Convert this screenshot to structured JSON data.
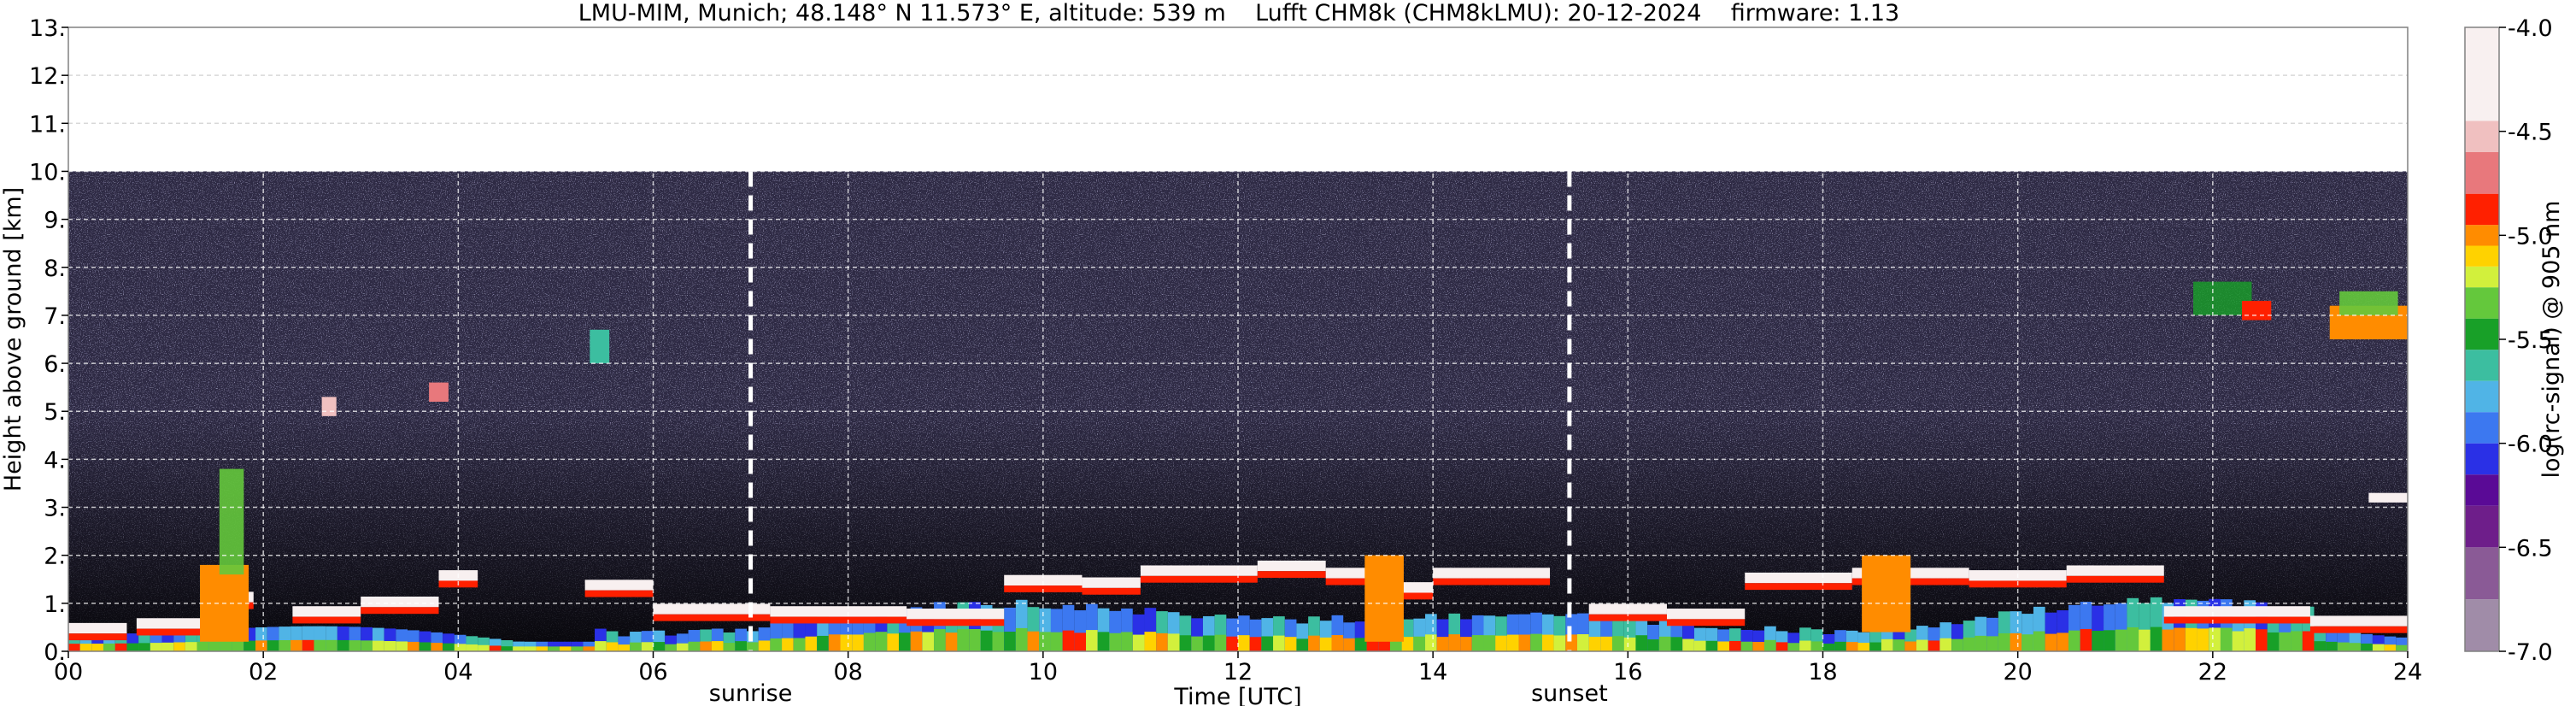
{
  "chart_data": {
    "type": "heatmap",
    "title": "LMU-MIM, Munich; 48.148° N 11.573° E, altitude: 539 m    Lufft CHM8k (CHM8kLMU): 20-12-2024    firmware: 1.13",
    "xlabel": "Time [UTC]",
    "ylabel": "Height above ground [km]",
    "colorbar_label": "log(rc-signal) @ 905 nm",
    "xlim": [
      0,
      24
    ],
    "ylim": [
      0,
      13
    ],
    "x_tick_labels": [
      "00",
      "02",
      "04",
      "06",
      "08",
      "10",
      "12",
      "14",
      "16",
      "18",
      "20",
      "22",
      "24"
    ],
    "y_ticks": [
      0,
      1,
      2,
      3,
      4,
      5,
      6,
      7,
      8,
      9,
      10,
      11,
      12,
      13
    ],
    "y_tick_labels": [
      "0.",
      "1.",
      "2.",
      "3.",
      "4.",
      "5.",
      "6.",
      "7.",
      "8.",
      "9.",
      "10.",
      "11.",
      "12.",
      "13."
    ],
    "colorbar_ticks": [
      -4.0,
      -4.5,
      -5.0,
      -5.5,
      -6.0,
      -6.5,
      -7.0
    ],
    "colorbar_tick_labels": [
      "-4.0",
      "-4.5",
      "-5.0",
      "-5.5",
      "-6.0",
      "-6.5",
      "-7.0"
    ],
    "colorbar_range": [
      -7.0,
      -4.0
    ],
    "grid": true,
    "data_top_km": 10.0,
    "background_color": "#2e2a44",
    "event_lines": [
      {
        "label": "sunrise",
        "time_h": 7.0
      },
      {
        "label": "sunset",
        "time_h": 15.4
      }
    ],
    "colormap": [
      {
        "value": -7.0,
        "color": "#a08ca8"
      },
      {
        "value": -6.75,
        "color": "#8a5a96"
      },
      {
        "value": -6.5,
        "color": "#6e1e8a"
      },
      {
        "value": -6.3,
        "color": "#5a0a96"
      },
      {
        "value": -6.15,
        "color": "#2a30e6"
      },
      {
        "value": -6.0,
        "color": "#3c78f0"
      },
      {
        "value": -5.85,
        "color": "#50b4e6"
      },
      {
        "value": -5.7,
        "color": "#3cbea0"
      },
      {
        "value": -5.55,
        "color": "#18a028"
      },
      {
        "value": -5.4,
        "color": "#64c83c"
      },
      {
        "value": -5.25,
        "color": "#d2f03c"
      },
      {
        "value": -5.15,
        "color": "#ffd200"
      },
      {
        "value": -5.05,
        "color": "#ff8c00"
      },
      {
        "value": -4.95,
        "color": "#ff2000"
      },
      {
        "value": -4.8,
        "color": "#e8787c"
      },
      {
        "value": -4.6,
        "color": "#f0c0c0"
      },
      {
        "value": -4.45,
        "color": "#f8f0f0"
      },
      {
        "value": -4.0,
        "color": "#ffffff"
      }
    ]
  }
}
